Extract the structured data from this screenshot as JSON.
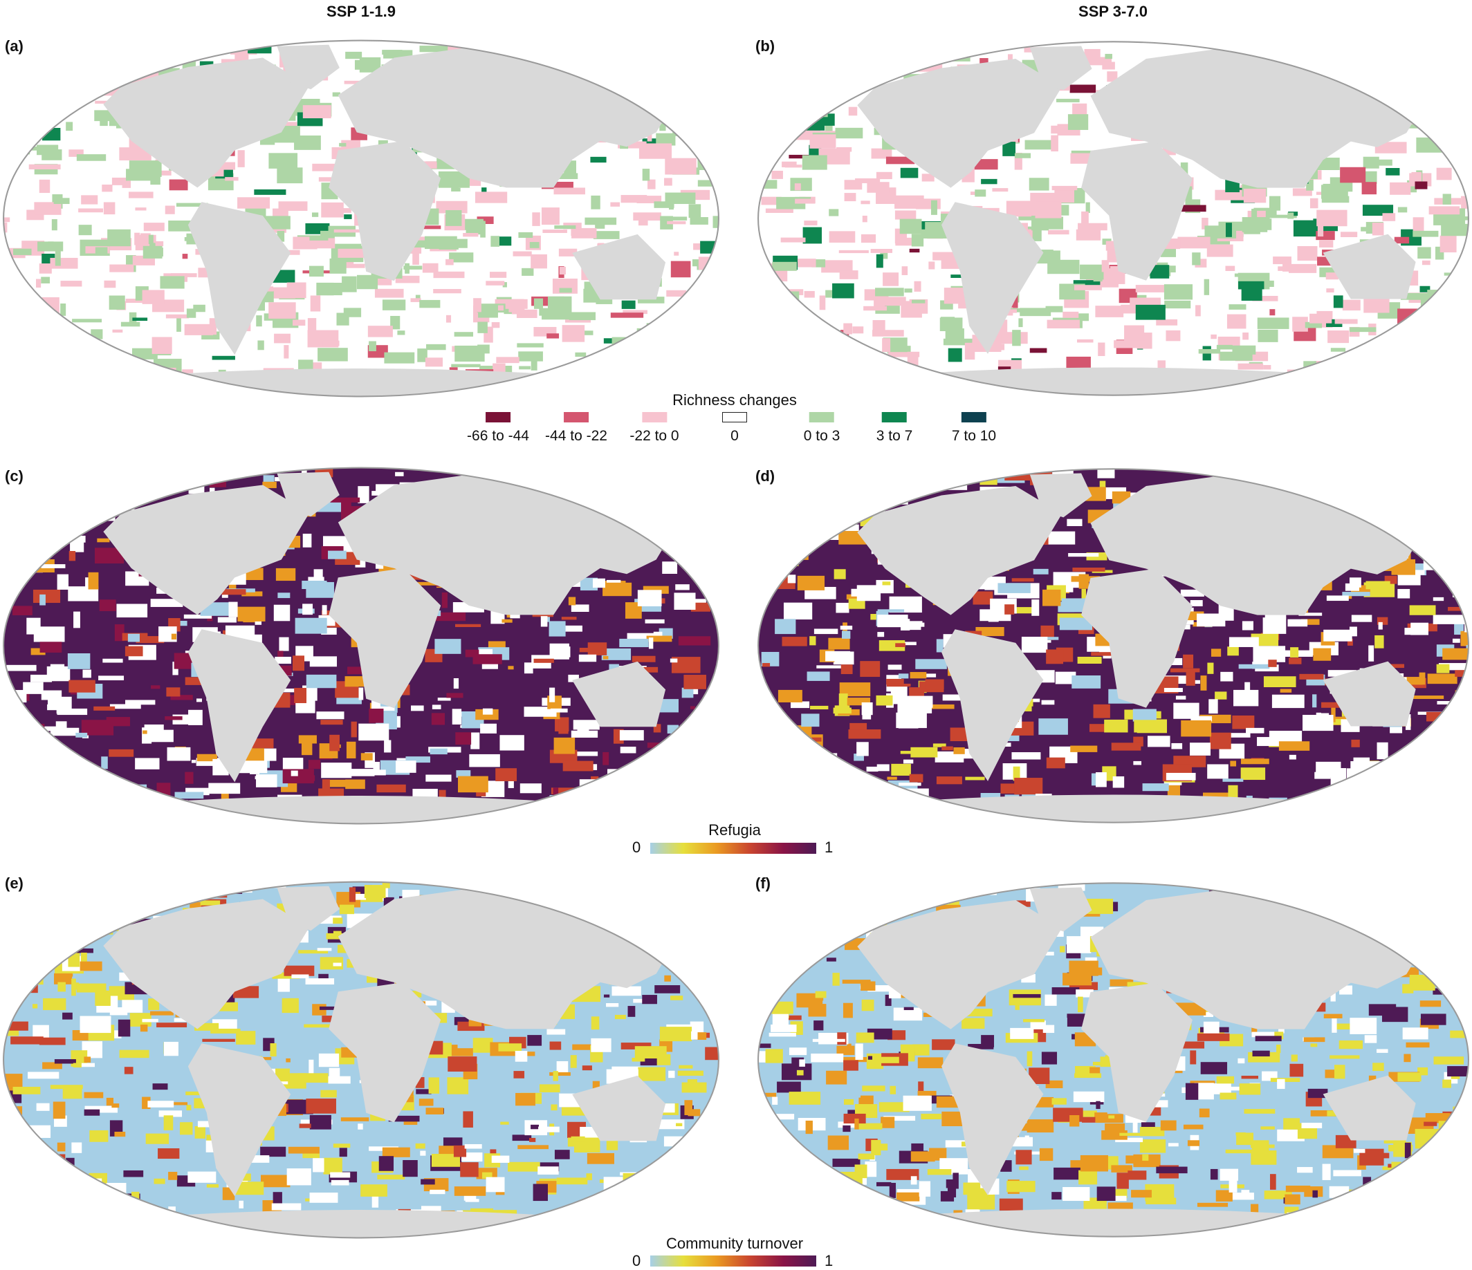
{
  "columns": {
    "left": "SSP 1-1.9",
    "right": "SSP 3-7.0"
  },
  "panels": {
    "a": "(a)",
    "b": "(b)",
    "c": "(c)",
    "d": "(d)",
    "e": "(e)",
    "f": "(f)"
  },
  "richness_legend": {
    "title": "Richness changes",
    "items": [
      {
        "label": "-66 to -44",
        "color": "#7a1236"
      },
      {
        "label": "-44 to -22",
        "color": "#d4566f"
      },
      {
        "label": "-22 to 0",
        "color": "#f7c3cf"
      },
      {
        "label": "0",
        "color": "#ffffff"
      },
      {
        "label": "0 to 3",
        "color": "#aed6a6"
      },
      {
        "label": "3 to 7",
        "color": "#0e8650"
      },
      {
        "label": "7 to 10",
        "color": "#0e4150"
      }
    ]
  },
  "refugia_legend": {
    "title": "Refugia",
    "min": "0",
    "max": "1",
    "colors": [
      "#a6cfe6",
      "#e6df3c",
      "#ea9a22",
      "#c9452f",
      "#8a1446",
      "#4e1a55"
    ]
  },
  "turnover_legend": {
    "title": "Community turnover",
    "min": "0",
    "max": "1",
    "colors": [
      "#a6cfe6",
      "#e6df3c",
      "#ea9a22",
      "#c9452f",
      "#8a1446",
      "#4e1a55"
    ]
  },
  "colors": {
    "land": "#d9d9d9",
    "outline": "#9a9a9a"
  }
}
